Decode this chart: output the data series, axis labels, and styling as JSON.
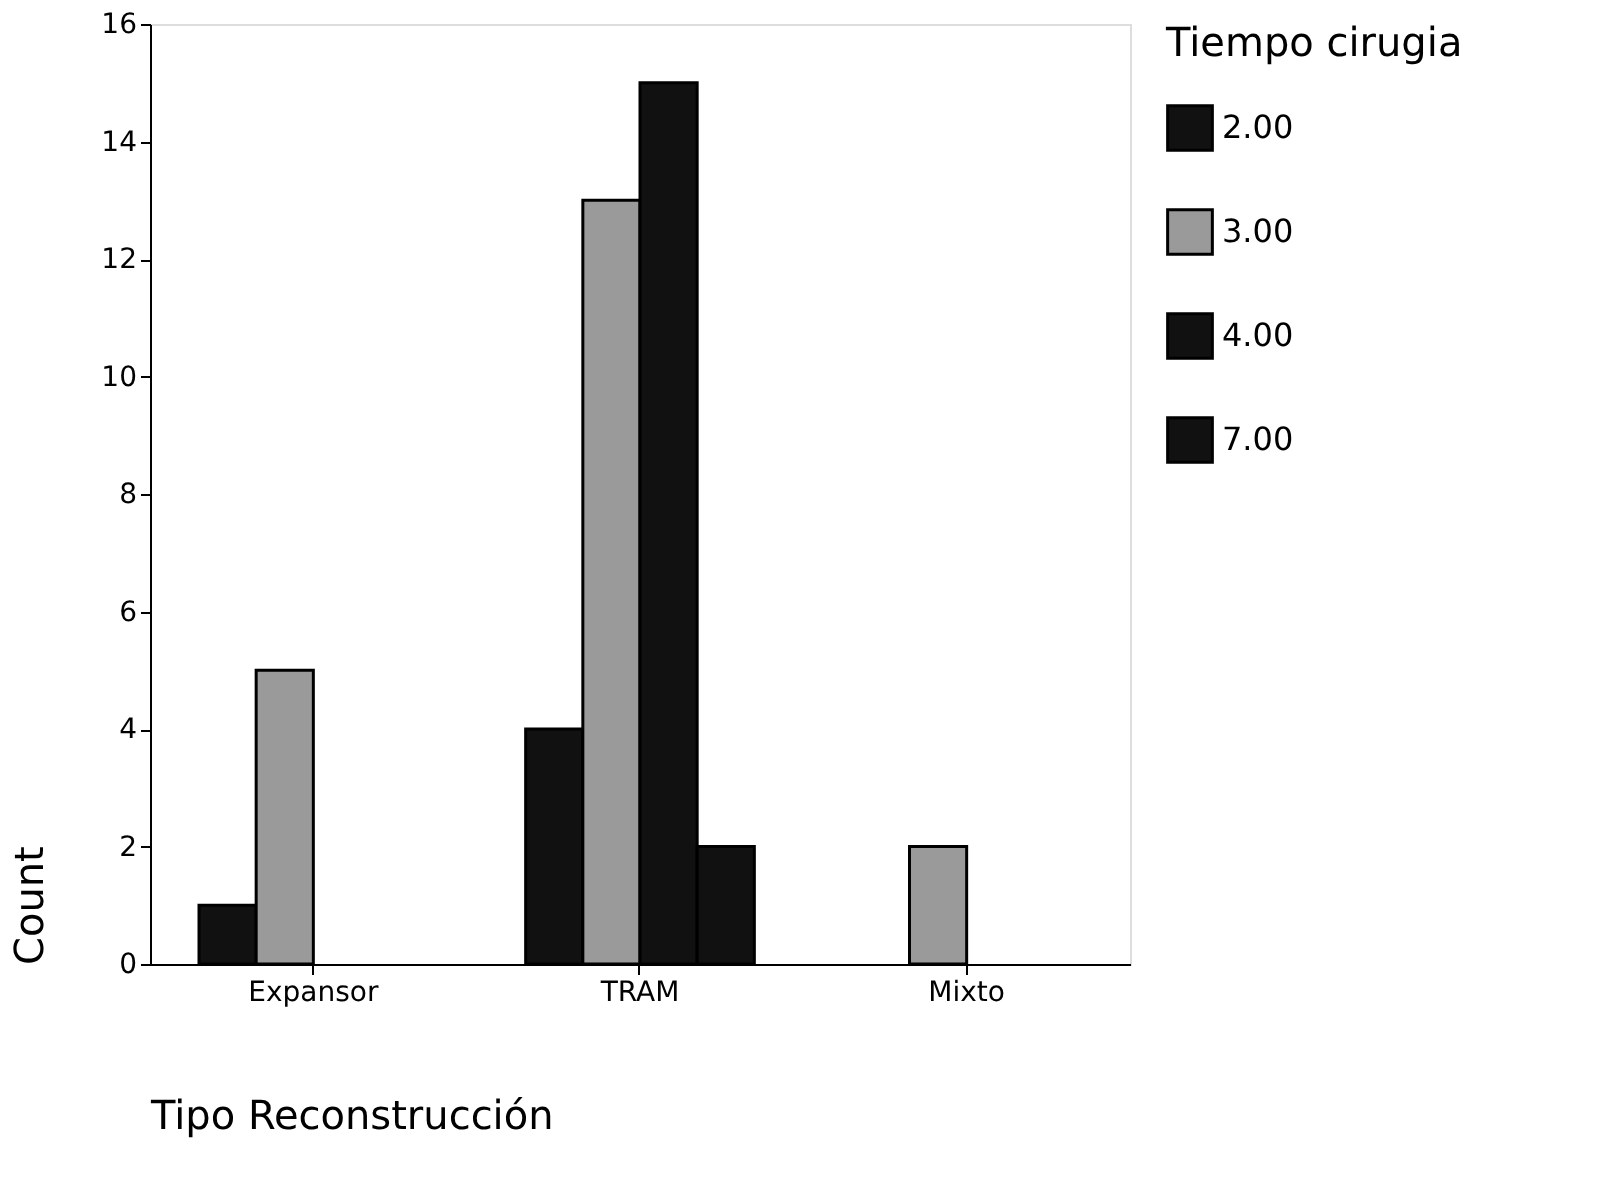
{
  "chart_data": {
    "type": "bar",
    "xlabel": "Tipo Reconstrucción",
    "ylabel": "Count",
    "legend_title": "Tiempo cirugia",
    "categories": [
      "Expansor",
      "TRAM",
      "Mixto"
    ],
    "series": [
      {
        "name": "2.00",
        "color": "#111111",
        "values": [
          1,
          4,
          null
        ]
      },
      {
        "name": "3.00",
        "color": "#9a9a9a",
        "values": [
          5,
          13,
          2
        ]
      },
      {
        "name": "4.00",
        "color": "#111111",
        "values": [
          null,
          15,
          null
        ]
      },
      {
        "name": "7.00",
        "color": "#111111",
        "values": [
          null,
          2,
          null
        ]
      }
    ],
    "ylim": [
      0,
      16
    ],
    "yticks": [
      0,
      2,
      4,
      6,
      8,
      10,
      12,
      14,
      16
    ],
    "grid": false,
    "legend": "right"
  }
}
